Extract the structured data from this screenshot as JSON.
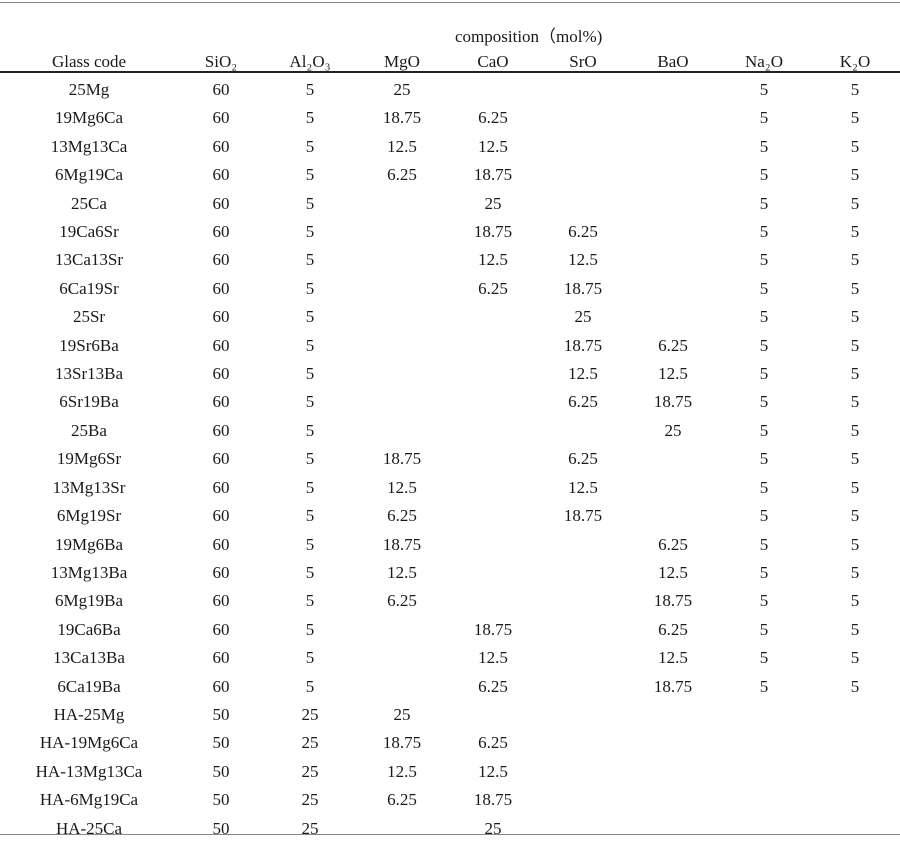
{
  "table": {
    "group_heading": "composition（mol%)",
    "columns": [
      {
        "key": "code",
        "label": "Glass code"
      },
      {
        "key": "sio2",
        "label": "SiO₂"
      },
      {
        "key": "al2o3",
        "label": "Al₂O₃"
      },
      {
        "key": "mgo",
        "label": "MgO"
      },
      {
        "key": "cao",
        "label": "CaO"
      },
      {
        "key": "sro",
        "label": "SrO"
      },
      {
        "key": "bao",
        "label": "BaO"
      },
      {
        "key": "na2o",
        "label": "Na₂O"
      },
      {
        "key": "k2o",
        "label": "K₂O"
      }
    ],
    "rows": [
      [
        "25Mg",
        "60",
        "5",
        "25",
        "",
        "",
        "",
        "5",
        "5"
      ],
      [
        "19Mg6Ca",
        "60",
        "5",
        "18.75",
        "6.25",
        "",
        "",
        "5",
        "5"
      ],
      [
        "13Mg13Ca",
        "60",
        "5",
        "12.5",
        "12.5",
        "",
        "",
        "5",
        "5"
      ],
      [
        "6Mg19Ca",
        "60",
        "5",
        "6.25",
        "18.75",
        "",
        "",
        "5",
        "5"
      ],
      [
        "25Ca",
        "60",
        "5",
        "",
        "25",
        "",
        "",
        "5",
        "5"
      ],
      [
        "19Ca6Sr",
        "60",
        "5",
        "",
        "18.75",
        "6.25",
        "",
        "5",
        "5"
      ],
      [
        "13Ca13Sr",
        "60",
        "5",
        "",
        "12.5",
        "12.5",
        "",
        "5",
        "5"
      ],
      [
        "6Ca19Sr",
        "60",
        "5",
        "",
        "6.25",
        "18.75",
        "",
        "5",
        "5"
      ],
      [
        "25Sr",
        "60",
        "5",
        "",
        "",
        "25",
        "",
        "5",
        "5"
      ],
      [
        "19Sr6Ba",
        "60",
        "5",
        "",
        "",
        "18.75",
        "6.25",
        "5",
        "5"
      ],
      [
        "13Sr13Ba",
        "60",
        "5",
        "",
        "",
        "12.5",
        "12.5",
        "5",
        "5"
      ],
      [
        "6Sr19Ba",
        "60",
        "5",
        "",
        "",
        "6.25",
        "18.75",
        "5",
        "5"
      ],
      [
        "25Ba",
        "60",
        "5",
        "",
        "",
        "",
        "25",
        "5",
        "5"
      ],
      [
        "19Mg6Sr",
        "60",
        "5",
        "18.75",
        "",
        "6.25",
        "",
        "5",
        "5"
      ],
      [
        "13Mg13Sr",
        "60",
        "5",
        "12.5",
        "",
        "12.5",
        "",
        "5",
        "5"
      ],
      [
        "6Mg19Sr",
        "60",
        "5",
        "6.25",
        "",
        "18.75",
        "",
        "5",
        "5"
      ],
      [
        "19Mg6Ba",
        "60",
        "5",
        "18.75",
        "",
        "",
        "6.25",
        "5",
        "5"
      ],
      [
        "13Mg13Ba",
        "60",
        "5",
        "12.5",
        "",
        "",
        "12.5",
        "5",
        "5"
      ],
      [
        "6Mg19Ba",
        "60",
        "5",
        "6.25",
        "",
        "",
        "18.75",
        "5",
        "5"
      ],
      [
        "19Ca6Ba",
        "60",
        "5",
        "",
        "18.75",
        "",
        "6.25",
        "5",
        "5"
      ],
      [
        "13Ca13Ba",
        "60",
        "5",
        "",
        "12.5",
        "",
        "12.5",
        "5",
        "5"
      ],
      [
        "6Ca19Ba",
        "60",
        "5",
        "",
        "6.25",
        "",
        "18.75",
        "5",
        "5"
      ],
      [
        "HA-25Mg",
        "50",
        "25",
        "25",
        "",
        "",
        "",
        "",
        ""
      ],
      [
        "HA-19Mg6Ca",
        "50",
        "25",
        "18.75",
        "6.25",
        "",
        "",
        "",
        ""
      ],
      [
        "HA-13Mg13Ca",
        "50",
        "25",
        "12.5",
        "12.5",
        "",
        "",
        "",
        ""
      ],
      [
        "HA-6Mg19Ca",
        "50",
        "25",
        "6.25",
        "18.75",
        "",
        "",
        "",
        ""
      ],
      [
        "HA-25Ca",
        "50",
        "25",
        "",
        "25",
        "",
        "",
        "",
        ""
      ]
    ]
  }
}
